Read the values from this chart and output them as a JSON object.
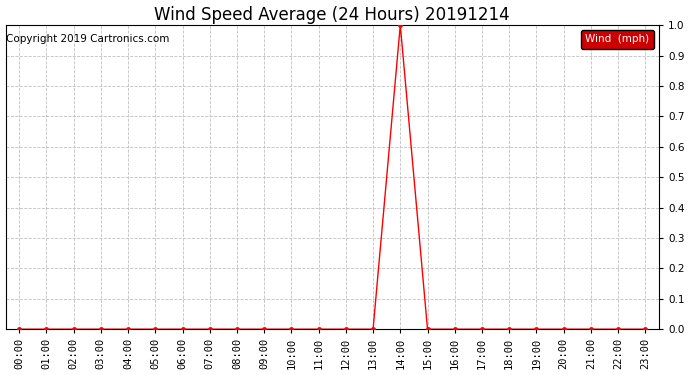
{
  "title": "Wind Speed Average (24 Hours) 20191214",
  "copyright_text": "Copyright 2019 Cartronics.com",
  "background_color": "#ffffff",
  "plot_bg_color": "#ffffff",
  "grid_color": "#c0c0c0",
  "line_color": "#ff0000",
  "line_width": 1.0,
  "marker": "o",
  "marker_size": 2.5,
  "ylim": [
    0.0,
    1.0
  ],
  "yticks": [
    0.0,
    0.1,
    0.2,
    0.3,
    0.4,
    0.5,
    0.6,
    0.7,
    0.8,
    0.9,
    1.0
  ],
  "ytick_labels": [
    "0.0",
    "0.1",
    "0.2",
    "0.3",
    "0.4",
    "0.5",
    "0.6",
    "0.7",
    "0.8",
    "0.9",
    "1.0"
  ],
  "legend_label": "Wind  (mph)",
  "legend_bg": "#cc0000",
  "legend_text_color": "#ffffff",
  "hours": [
    "00:00",
    "01:00",
    "02:00",
    "03:00",
    "04:00",
    "05:00",
    "06:00",
    "07:00",
    "08:00",
    "09:00",
    "10:00",
    "11:00",
    "12:00",
    "13:00",
    "14:00",
    "15:00",
    "16:00",
    "17:00",
    "18:00",
    "19:00",
    "20:00",
    "21:00",
    "22:00",
    "23:00"
  ],
  "values": [
    0,
    0,
    0,
    0,
    0,
    0,
    0,
    0,
    0,
    0,
    0,
    0,
    0,
    0,
    1.0,
    0,
    0,
    0,
    0,
    0,
    0,
    0,
    0,
    0
  ],
  "title_fontsize": 12,
  "tick_fontsize": 7.5,
  "copyright_fontsize": 7.5
}
